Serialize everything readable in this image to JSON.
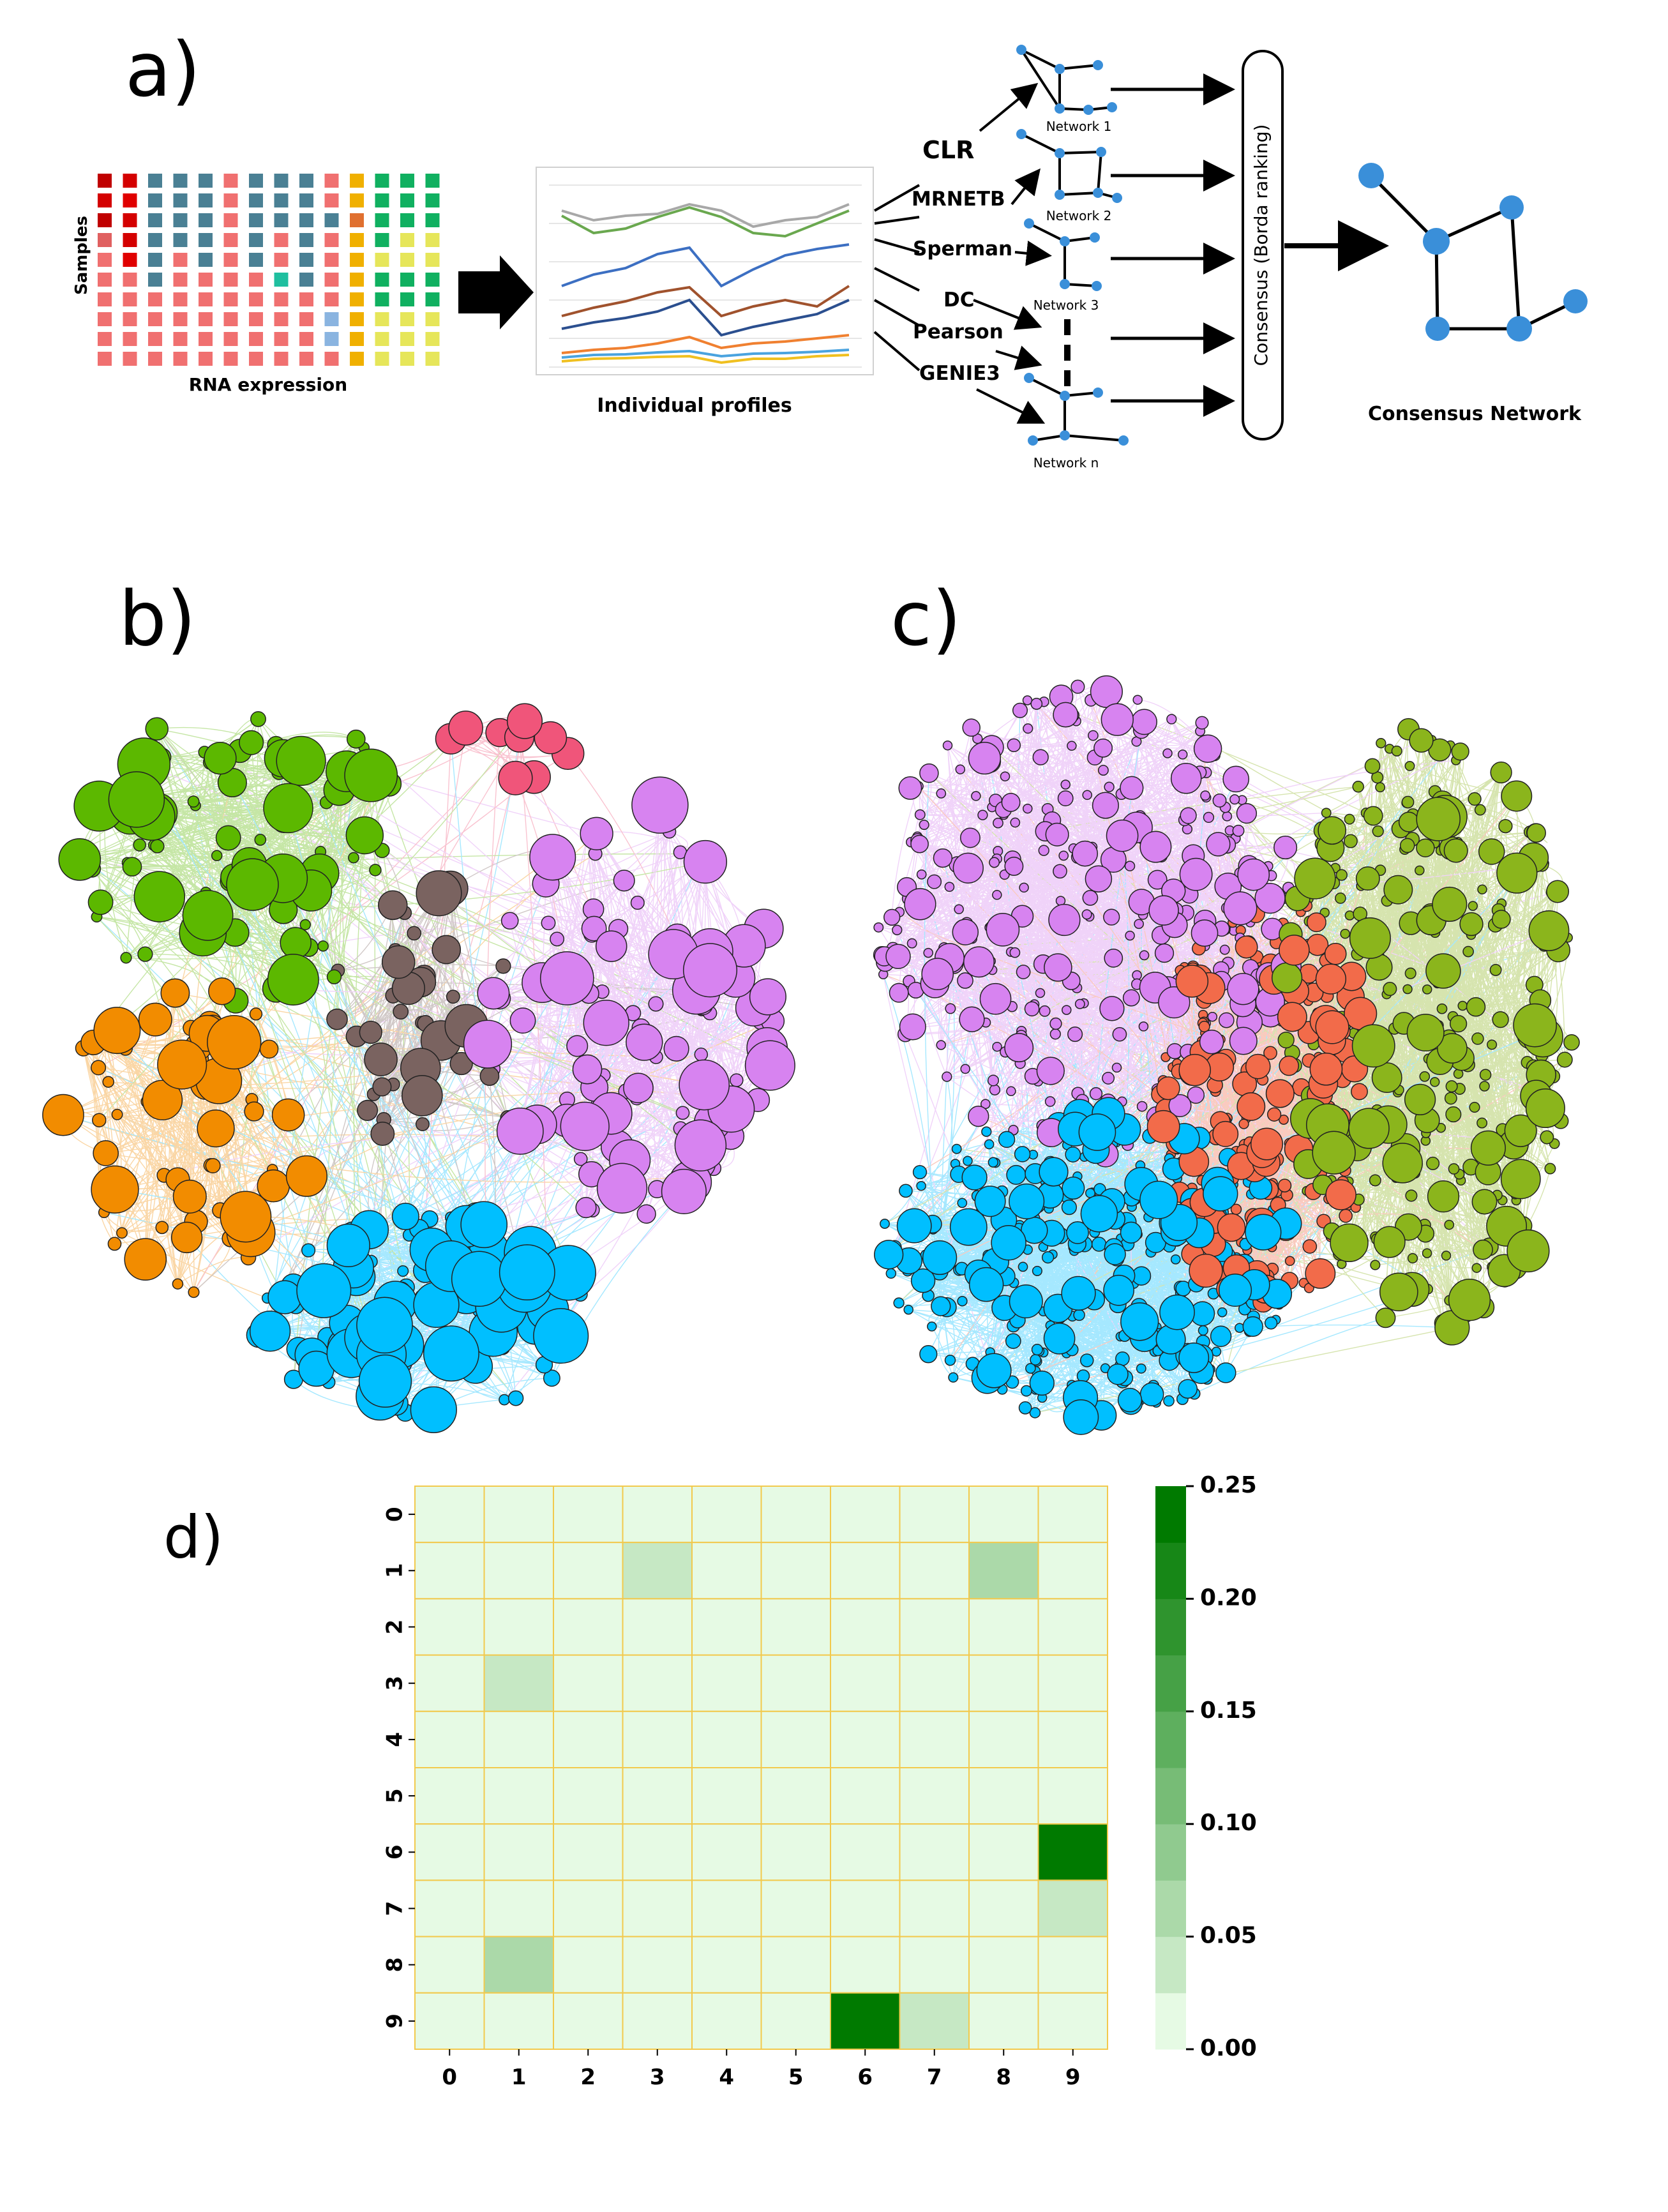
{
  "panels": {
    "a": "a)",
    "b": "b)",
    "c": "c)",
    "d": "d)"
  },
  "panel_a": {
    "samples_label": "Samples",
    "rna_label": "RNA expression",
    "profiles_label": "Individual profiles",
    "methods": [
      "CLR",
      "MRNETB",
      "Sperman",
      "DC",
      "Pearson",
      "GENIE3"
    ],
    "networks": [
      "Network 1",
      "Network 2",
      "Network 3",
      "Network n"
    ],
    "consensus_box": "Consensus (Borda ranking)",
    "consensus_label": "Consensus Network"
  },
  "colors": {
    "green": "#5cb800",
    "orange": "#f28c00",
    "cyan": "#00bfff",
    "violet": "#d783f0",
    "brown": "#7a6360",
    "pink": "#f0557a",
    "olive": "#8bb51c",
    "red_orange": "#f26b4a",
    "network_blue": "#3a8fd9",
    "grid_yellow": "#f2c94c",
    "dark_green": "#007a00"
  },
  "chart_data": {
    "type": "heatmap",
    "x_labels": [
      "0",
      "1",
      "2",
      "3",
      "4",
      "5",
      "6",
      "7",
      "8",
      "9"
    ],
    "y_labels": [
      "0",
      "1",
      "2",
      "3",
      "4",
      "5",
      "6",
      "7",
      "8",
      "9"
    ],
    "values": [
      [
        0,
        0,
        0,
        0,
        0,
        0,
        0,
        0,
        0,
        0
      ],
      [
        0,
        0,
        0,
        0.04,
        0,
        0,
        0,
        0,
        0.06,
        0
      ],
      [
        0,
        0,
        0,
        0,
        0,
        0,
        0,
        0,
        0,
        0
      ],
      [
        0,
        0.04,
        0,
        0,
        0,
        0,
        0,
        0,
        0,
        0
      ],
      [
        0,
        0,
        0,
        0,
        0,
        0,
        0,
        0,
        0,
        0
      ],
      [
        0,
        0,
        0,
        0,
        0,
        0,
        0,
        0,
        0,
        0
      ],
      [
        0,
        0,
        0,
        0,
        0,
        0,
        0,
        0,
        0,
        0.25
      ],
      [
        0,
        0,
        0,
        0,
        0,
        0,
        0,
        0,
        0,
        0.04
      ],
      [
        0,
        0.06,
        0,
        0,
        0,
        0,
        0,
        0,
        0,
        0
      ],
      [
        0,
        0,
        0,
        0,
        0,
        0,
        0.25,
        0.04,
        0,
        0
      ]
    ],
    "vmin": 0,
    "vmax": 0.25,
    "colorbar_ticks": [
      "0.00",
      "0.05",
      "0.10",
      "0.15",
      "0.20",
      "0.25"
    ],
    "colorbar_steps": 10
  }
}
